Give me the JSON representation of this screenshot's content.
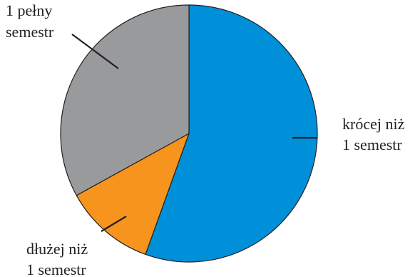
{
  "chart_data": {
    "type": "pie",
    "title": "",
    "start_angle_deg": 0,
    "direction": "clockwise",
    "slices": [
      {
        "key": "shorter",
        "value": 55.5,
        "color": "#0090d9",
        "label_line1": "krócej niż",
        "label_line2": "1 semestr"
      },
      {
        "key": "longer",
        "value": 11.5,
        "color": "#f7941d",
        "label_line1": "dłużej niż",
        "label_line2": "1 semestr"
      },
      {
        "key": "full",
        "value": 33.0,
        "color": "#999a9c",
        "label_line1": "1 pełny",
        "label_line2": "semestr"
      }
    ],
    "outline_color": "#231f20",
    "leader_color": "#231f20"
  }
}
